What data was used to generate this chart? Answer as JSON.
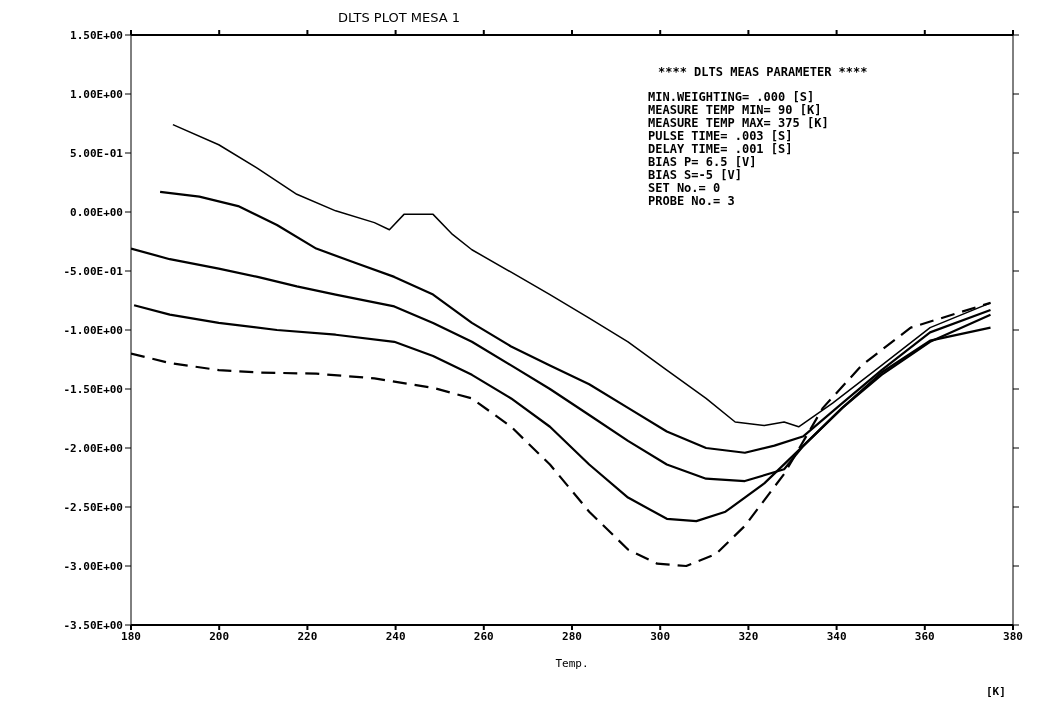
{
  "chart_data": {
    "type": "line",
    "title": "DLTS PLOT MESA 1",
    "xlabel": "Temp.",
    "annotations": [
      "**** DLTS MEAS PARAMETER ****",
      "MIN.WEIGHTING= .000 [S]",
      "MEASURE TEMP MIN= 90 [K]",
      "MEASURE TEMP MAX= 375 [K]",
      "PULSE TIME= .003 [S]",
      "DELAY TIME= .001 [S]",
      "BIAS P= 6.5 [V]",
      "BIAS S=-5 [V]",
      "SET No.= 0",
      "PROBE No.= 3",
      "[K]"
    ],
    "xlim": [
      180,
      380
    ],
    "xticks": [
      180,
      200,
      220,
      240,
      260,
      280,
      300,
      320,
      340,
      360,
      380
    ],
    "ylim": [
      -3.5,
      1.5
    ],
    "yticks": [
      {
        "value": -3.5,
        "label": "-3.50E+00"
      },
      {
        "value": -3,
        "label": "-3.00E+00"
      },
      {
        "value": -2.5,
        "label": "-2.50E+00"
      },
      {
        "value": -2,
        "label": "-2.00E+00"
      },
      {
        "value": -1.5,
        "label": "-1.50E+00"
      },
      {
        "value": -1,
        "label": "-1.00E+00"
      },
      {
        "value": -0.5,
        "label": "-5.00E-01"
      },
      {
        "value": 0,
        "label": "0.00E+00"
      },
      {
        "value": 0.5,
        "label": "5.00E-01"
      },
      {
        "value": 1,
        "label": "1.00E+00"
      },
      {
        "value": 1.5,
        "label": "1.50E+00"
      }
    ],
    "grid": false,
    "legend": false,
    "marker": "none",
    "series": [
      {
        "color": "#000000",
        "line_style": "solid",
        "x": [
          189.5,
          199.9,
          208.7,
          217.6,
          226.4,
          235.2,
          238.6,
          241.9,
          248.5,
          252.9,
          257.3,
          266.2,
          275.0,
          283.9,
          292.7,
          301.5,
          310.4,
          317.0,
          323.6,
          328.1,
          331.4,
          339.1,
          350.2,
          361.2,
          374.9
        ],
        "values": [
          0.74,
          0.57,
          0.37,
          0.15,
          0.01,
          -0.09,
          -0.15,
          -0.02,
          -0.02,
          -0.19,
          -0.32,
          -0.51,
          -0.7,
          -0.9,
          -1.1,
          -1.34,
          -1.58,
          -1.78,
          -1.81,
          -1.78,
          -1.82,
          -1.62,
          -1.3,
          -0.98,
          -0.77
        ]
      },
      {
        "color": "#000000",
        "line_style": "solid",
        "x": [
          186.6,
          195.5,
          204.3,
          213.1,
          222.0,
          230.8,
          239.7,
          248.5,
          257.3,
          266.2,
          275.0,
          283.9,
          292.7,
          301.5,
          310.4,
          319.2,
          325.9,
          332.5,
          341.3,
          350.2,
          361.2,
          374.9
        ],
        "values": [
          0.17,
          0.13,
          0.05,
          -0.11,
          -0.31,
          -0.43,
          -0.55,
          -0.7,
          -0.94,
          -1.14,
          -1.3,
          -1.46,
          -1.66,
          -1.86,
          -2.0,
          -2.04,
          -1.98,
          -1.9,
          -1.62,
          -1.34,
          -1.02,
          -0.83
        ]
      },
      {
        "color": "#000000",
        "line_style": "solid",
        "x": [
          180,
          188.8,
          199.9,
          208.7,
          217.6,
          226.4,
          239.7,
          248.5,
          257.3,
          266.2,
          275.0,
          283.9,
          292.7,
          301.5,
          310.4,
          319.2,
          328.1,
          332.5,
          341.3,
          350.2,
          361.2,
          374.9
        ],
        "values": [
          -0.31,
          -0.4,
          -0.48,
          -0.55,
          -0.63,
          -0.7,
          -0.8,
          -0.94,
          -1.1,
          -1.3,
          -1.5,
          -1.72,
          -1.94,
          -2.14,
          -2.26,
          -2.28,
          -2.18,
          -1.98,
          -1.66,
          -1.38,
          -1.1,
          -0.87
        ]
      },
      {
        "color": "#000000",
        "line_style": "solid",
        "x": [
          180.7,
          188.8,
          199.9,
          213.1,
          226.4,
          239.7,
          248.5,
          257.3,
          266.2,
          275.0,
          283.9,
          292.7,
          301.5,
          308.2,
          314.8,
          323.6,
          332.5,
          341.3,
          350.2,
          361.2,
          374.9
        ],
        "values": [
          -0.79,
          -0.87,
          -0.94,
          -1.0,
          -1.04,
          -1.1,
          -1.22,
          -1.38,
          -1.58,
          -1.82,
          -2.14,
          -2.42,
          -2.6,
          -2.62,
          -2.54,
          -2.3,
          -1.98,
          -1.66,
          -1.36,
          -1.09,
          -0.98
        ]
      },
      {
        "color": "#000000",
        "line_style": "dashed",
        "x": [
          180,
          188.8,
          199.9,
          208.7,
          222.0,
          235.2,
          248.5,
          257.3,
          266.2,
          275.0,
          283.9,
          292.7,
          299.3,
          305.9,
          312.6,
          319.2,
          328.1,
          336.9,
          345.7,
          356.8,
          374.9
        ],
        "values": [
          -1.2,
          -1.28,
          -1.34,
          -1.36,
          -1.37,
          -1.41,
          -1.49,
          -1.58,
          -1.82,
          -2.14,
          -2.54,
          -2.86,
          -2.98,
          -3.0,
          -2.9,
          -2.66,
          -2.22,
          -1.66,
          -1.3,
          -0.98,
          -0.77
        ]
      }
    ]
  }
}
